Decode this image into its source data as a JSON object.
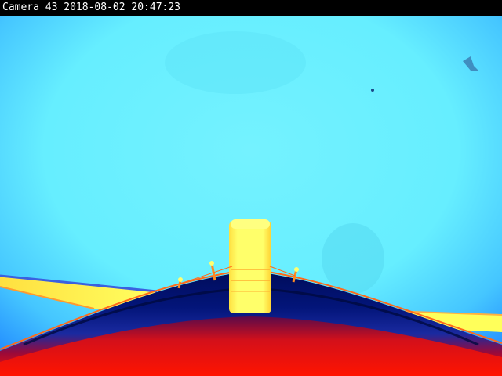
{
  "overlay": {
    "camera_label": "Camera 43",
    "date": "2018-08-02",
    "time": "20:47:23"
  },
  "palette": {
    "sky_center": "#66f0ff",
    "sky_edge": "#2a9cff",
    "hot_yellow": "#ffff5a",
    "warm_orange": "#ff7a1a",
    "dark_body": "#00126e",
    "body_blue": "#0a2aa8",
    "hot_red": "#ff1400",
    "osd_background": "#000000",
    "osd_text": "#ffffff"
  }
}
